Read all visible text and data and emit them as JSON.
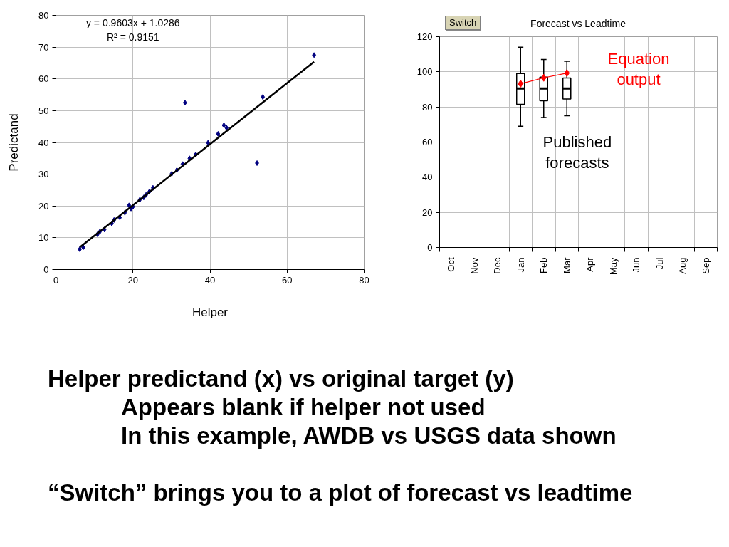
{
  "chart_data": [
    {
      "type": "scatter",
      "xlabel": "Helper",
      "ylabel": "Predictand",
      "xlim": [
        0,
        80
      ],
      "ylim": [
        0,
        80
      ],
      "xticks": [
        0,
        20,
        40,
        60,
        80
      ],
      "yticks": [
        0,
        10,
        20,
        30,
        40,
        50,
        60,
        70,
        80
      ],
      "grid": true,
      "annotations": [
        "y = 0.9603x + 1.0286",
        "R² = 0.9151"
      ],
      "series": [
        {
          "type": "scatter",
          "color": "#000080",
          "marker": "diamond",
          "x": [
            6.2,
            7.1,
            10.8,
            11.4,
            12.6,
            14.5,
            15.1,
            16.6,
            17.9,
            19.0,
            19.5,
            20.0,
            21.8,
            22.8,
            23.4,
            24.3,
            25.2,
            30.1,
            31.4,
            32.9,
            33.5,
            34.7,
            36.3,
            39.5,
            42.1,
            43.6,
            44.3,
            52.2,
            53.7,
            67.0
          ],
          "values": [
            6.4,
            7.0,
            11.1,
            11.9,
            12.6,
            14.5,
            15.6,
            16.4,
            17.9,
            20.2,
            19.2,
            19.8,
            22.0,
            22.7,
            23.5,
            24.6,
            25.7,
            30.2,
            31.3,
            33.2,
            52.5,
            35.0,
            36.2,
            39.9,
            42.7,
            45.4,
            44.6,
            33.5,
            54.3,
            67.5
          ]
        },
        {
          "type": "line",
          "color": "#000000",
          "x": [
            6.2,
            67.0
          ],
          "values": [
            7.0,
            65.4
          ]
        }
      ]
    },
    {
      "type": "box",
      "title": "Forecast vs Leadtime",
      "categories": [
        "Oct",
        "Nov",
        "Dec",
        "Jan",
        "Feb",
        "Mar",
        "Apr",
        "May",
        "Jun",
        "Jul",
        "Aug",
        "Sep"
      ],
      "ylim": [
        0,
        120
      ],
      "yticks": [
        0,
        20,
        40,
        60,
        80,
        100,
        120
      ],
      "grid": true,
      "annotations": [
        "Switch"
      ],
      "series": [
        {
          "type": "box",
          "name": "Published forecasts",
          "color": "#000000",
          "boxes": [
            null,
            null,
            null,
            {
              "low": 69,
              "q1": 81.5,
              "median": 90.5,
              "q3": 99,
              "high": 114
            },
            {
              "low": 74,
              "q1": 83.5,
              "median": 90.5,
              "q3": 97,
              "high": 107
            },
            {
              "low": 75,
              "q1": 84.5,
              "median": 90.5,
              "q3": 96.5,
              "high": 106
            },
            null,
            null,
            null,
            null,
            null,
            null
          ]
        },
        {
          "type": "line",
          "name": "Equation output",
          "color": "#ff0000",
          "marker": "diamond",
          "values": [
            null,
            null,
            null,
            93.2,
            96.6,
            99.3,
            null,
            null,
            null,
            null,
            null,
            null
          ]
        }
      ]
    },
    {
      "type": "other",
      "annotations": [
        "Helper predictand (x) vs original target (y)",
        "Appears blank if helper not used",
        "In this example, AWDB vs USGS data shown",
        "“Switch” brings you to a plot of forecast vs leadtime"
      ]
    }
  ]
}
